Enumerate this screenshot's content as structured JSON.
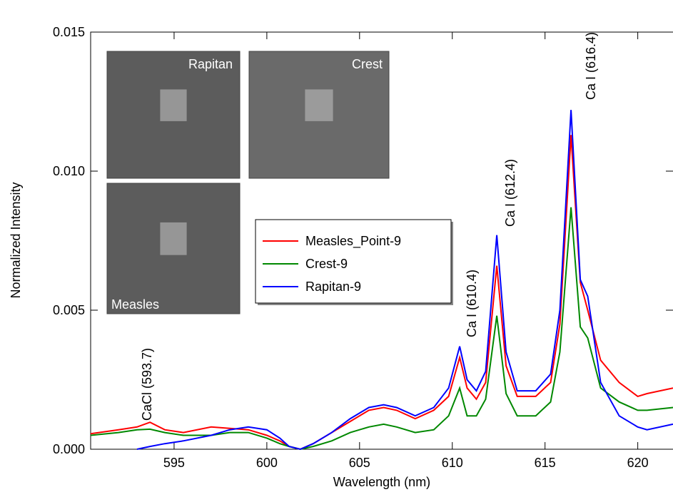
{
  "chart_data": {
    "type": "line",
    "xlabel": "Wavelength (nm)",
    "ylabel": "Normalized Intensity",
    "x": [
      590.5,
      592,
      593,
      593.7,
      594.5,
      595.5,
      597,
      598,
      599,
      600,
      600.7,
      601.2,
      601.8,
      602.5,
      603.5,
      604.5,
      605.5,
      606.3,
      607,
      608,
      609,
      609.8,
      610.4,
      610.8,
      611.3,
      611.8,
      612.4,
      612.9,
      613.5,
      614.5,
      615.3,
      615.8,
      616.4,
      616.9,
      617.3,
      618,
      619,
      620,
      620.5,
      621.9
    ],
    "series": [
      {
        "name": "Measles_Point-9",
        "color": "#ff0000",
        "values": [
          0.00056,
          0.0007,
          0.0008,
          0.00097,
          0.0007,
          0.0006,
          0.0008,
          0.00075,
          0.0007,
          0.0005,
          0.0003,
          0.0001,
          0.0,
          0.0002,
          0.0006,
          0.001,
          0.0014,
          0.0015,
          0.0014,
          0.0011,
          0.0014,
          0.0019,
          0.0033,
          0.0022,
          0.0018,
          0.0024,
          0.0066,
          0.003,
          0.0019,
          0.0019,
          0.0024,
          0.0045,
          0.0113,
          0.006,
          0.005,
          0.0032,
          0.0024,
          0.0019,
          0.002,
          0.0022
        ]
      },
      {
        "name": "Crest-9",
        "color": "#008800",
        "values": [
          0.0005,
          0.0006,
          0.0007,
          0.00072,
          0.0006,
          0.0005,
          0.0005,
          0.0006,
          0.0006,
          0.0004,
          0.0002,
          0.0001,
          0.0,
          0.0001,
          0.0003,
          0.0006,
          0.0008,
          0.0009,
          0.0008,
          0.0006,
          0.0007,
          0.0012,
          0.0022,
          0.0012,
          0.0012,
          0.0018,
          0.0048,
          0.002,
          0.0012,
          0.0012,
          0.0017,
          0.0035,
          0.0087,
          0.0044,
          0.004,
          0.0022,
          0.0017,
          0.0014,
          0.0014,
          0.0015
        ]
      },
      {
        "name": "Rapitan-9",
        "color": "#0000ff",
        "values": [
          null,
          null,
          0.0,
          0.0001,
          0.0002,
          0.0003,
          0.0005,
          0.0007,
          0.0008,
          0.0007,
          0.0004,
          0.0001,
          0.0,
          0.0002,
          0.0006,
          0.0011,
          0.0015,
          0.0016,
          0.0015,
          0.0012,
          0.0015,
          0.0022,
          0.0037,
          0.0025,
          0.0021,
          0.0028,
          0.0077,
          0.0035,
          0.0021,
          0.0021,
          0.0027,
          0.005,
          0.0122,
          0.0061,
          0.0055,
          0.0024,
          0.0012,
          0.0008,
          0.0007,
          0.0009
        ]
      }
    ],
    "xlim": [
      590.5,
      621.9
    ],
    "ylim": [
      0,
      0.015
    ],
    "xticks": [
      595,
      600,
      605,
      610,
      615,
      620
    ],
    "yticks": [
      {
        "value": 0,
        "label": "0.000"
      },
      {
        "value": 0.005,
        "label": "0.005"
      },
      {
        "value": 0.01,
        "label": "0.010"
      },
      {
        "value": 0.015,
        "label": "0.015"
      }
    ],
    "annotations": [
      "CaCl (593.7)",
      "Ca I (610.4)",
      "Ca I (612.4)",
      "Ca I (616.4)"
    ],
    "inset_labels": [
      "Rapitan",
      "Crest",
      "Measles"
    ]
  }
}
